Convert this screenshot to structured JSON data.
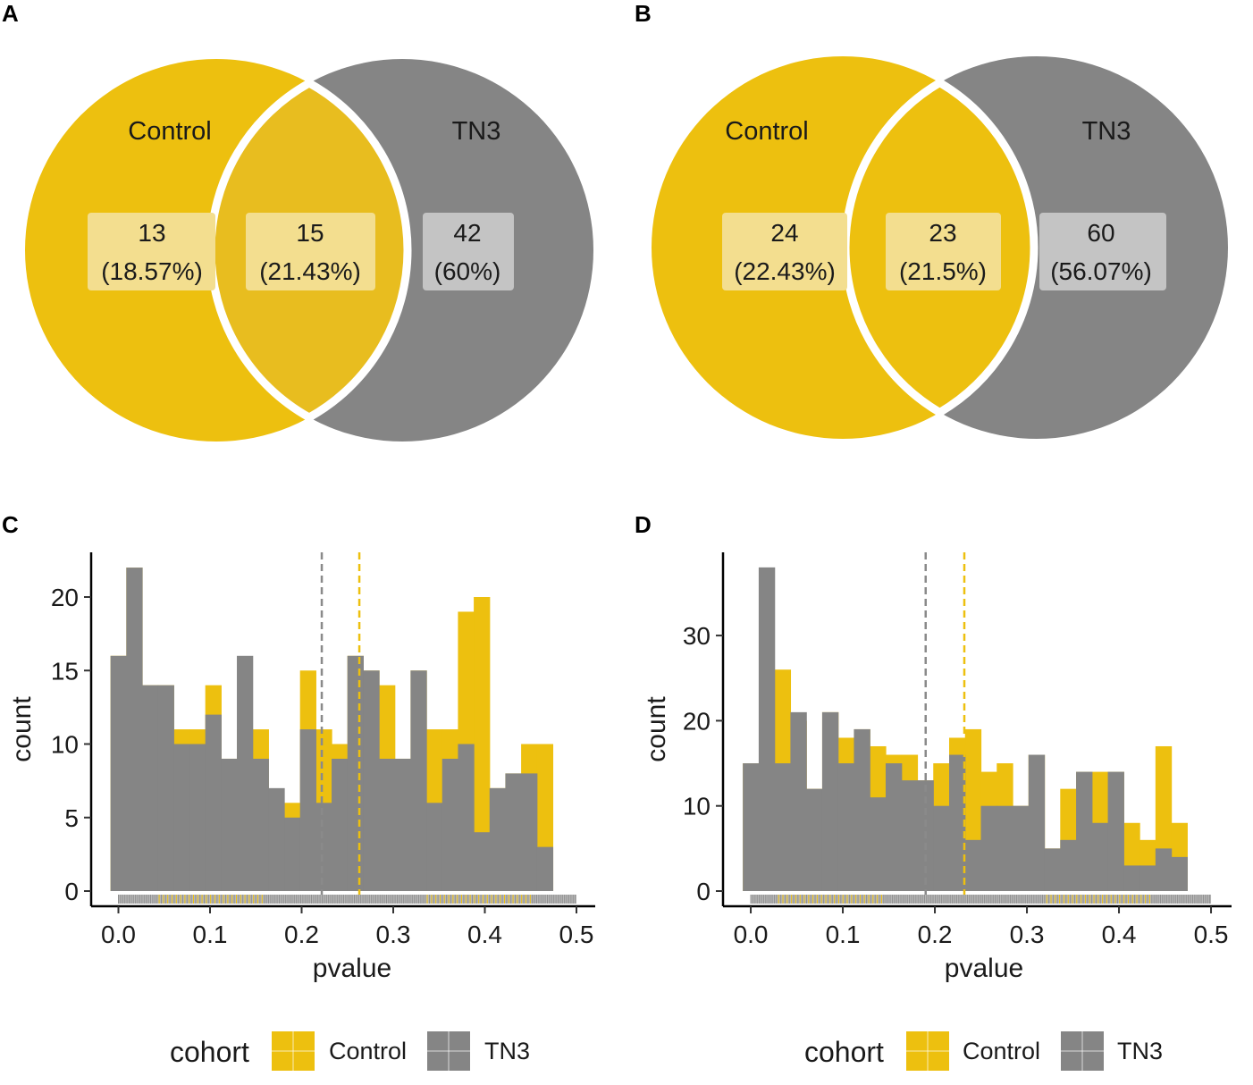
{
  "colors": {
    "control": "#EDC00F",
    "tn3": "#858585",
    "overlap_a": "#E8BD1F",
    "overlap_b": "#EDC00F",
    "overlap_label_bg": "#F3DE8F",
    "control_label_bg": "#F3DE8F",
    "tn3_label_bg": "#C4C4C4",
    "control_line": "#EDC00F",
    "tn3_line": "#8a8a8a"
  },
  "panels": {
    "A": {
      "letter": "A"
    },
    "B": {
      "letter": "B"
    },
    "C": {
      "letter": "C"
    },
    "D": {
      "letter": "D"
    }
  },
  "chart_data": [
    {
      "type": "venn",
      "panel": "A",
      "sets": [
        "Control",
        "TN3"
      ],
      "regions": {
        "control_only": {
          "count": "13",
          "percent": "(18.57%)"
        },
        "both": {
          "count": "15",
          "percent": "(21.43%)"
        },
        "tn3_only": {
          "count": "42",
          "percent": "(60%)"
        }
      }
    },
    {
      "type": "venn",
      "panel": "B",
      "sets": [
        "Control",
        "TN3"
      ],
      "regions": {
        "control_only": {
          "count": "24",
          "percent": "(22.43%)"
        },
        "both": {
          "count": "23",
          "percent": "(21.5%)"
        },
        "tn3_only": {
          "count": "60",
          "percent": "(56.07%)"
        }
      }
    },
    {
      "type": "histogram",
      "panel": "C",
      "xlabel": "pvalue",
      "ylabel": "count",
      "xlim": [
        -0.03,
        0.525
      ],
      "ylim": [
        -1.8,
        23.1
      ],
      "bin_width": 0.01724,
      "bins_start": -0.00862,
      "xticks": [
        "0.0",
        "0.1",
        "0.2",
        "0.3",
        "0.4",
        "0.5"
      ],
      "yticks": [
        "0",
        "5",
        "10",
        "15",
        "20"
      ],
      "series": [
        {
          "name": "Control",
          "values": [
            16,
            22,
            14,
            14,
            11,
            11,
            14,
            9,
            11,
            11,
            3,
            6,
            15,
            11,
            10,
            16,
            15,
            14,
            9,
            15,
            11,
            11,
            19,
            20,
            7,
            8,
            10,
            10
          ]
        },
        {
          "name": "TN3",
          "values": [
            16,
            22,
            14,
            14,
            10,
            10,
            12,
            9,
            16,
            9,
            7,
            5,
            11,
            6,
            9,
            16,
            15,
            9,
            9,
            15,
            6,
            9,
            10,
            4,
            7,
            8,
            8,
            3
          ]
        }
      ],
      "vlines": [
        {
          "name": "TN3",
          "x": 0.222
        },
        {
          "name": "Control",
          "x": 0.263
        }
      ],
      "legend": {
        "title": "cohort",
        "entries": [
          "Control",
          "TN3"
        ]
      }
    },
    {
      "type": "histogram",
      "panel": "D",
      "xlabel": "pvalue",
      "ylabel": "count",
      "xlim": [
        -0.03,
        0.52
      ],
      "ylim": [
        -1.8,
        40
      ],
      "bin_width": 0.01724,
      "bins_start": -0.00862,
      "xticks": [
        "0.0",
        "0.1",
        "0.2",
        "0.3",
        "0.4",
        "0.5"
      ],
      "yticks": [
        "0",
        "10",
        "20",
        "30"
      ],
      "series": [
        {
          "name": "Control",
          "values": [
            15,
            15,
            26,
            20,
            12,
            21,
            18,
            19,
            17,
            16,
            16,
            13,
            15,
            18,
            19,
            14,
            15,
            10,
            16,
            5,
            12,
            14,
            14,
            14,
            8,
            6,
            17,
            8
          ]
        },
        {
          "name": "TN3",
          "values": [
            15,
            38,
            15,
            21,
            12,
            21,
            15,
            19,
            11,
            15,
            13,
            13,
            10,
            16,
            6,
            10,
            10,
            10,
            16,
            5,
            6,
            14,
            8,
            14,
            3,
            3,
            5,
            4
          ]
        }
      ],
      "vlines": [
        {
          "name": "TN3",
          "x": 0.19
        },
        {
          "name": "Control",
          "x": 0.232
        }
      ],
      "legend": {
        "title": "cohort",
        "entries": [
          "Control",
          "TN3"
        ]
      }
    }
  ]
}
